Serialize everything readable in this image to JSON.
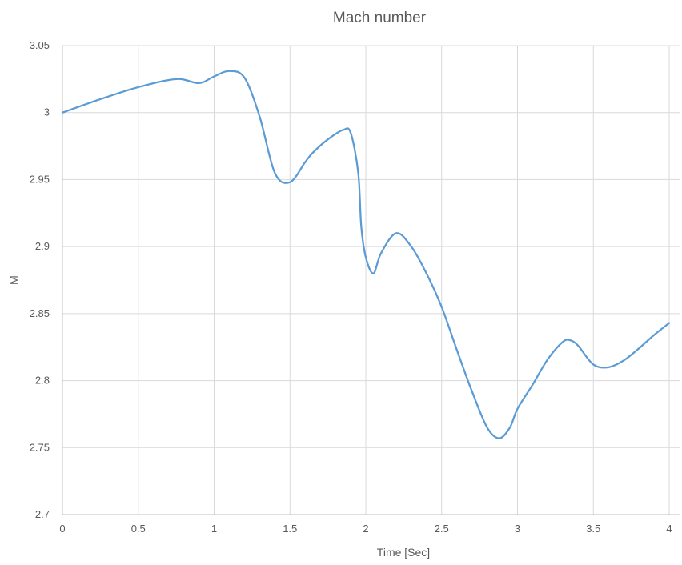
{
  "chart_data": {
    "type": "line",
    "title": "Mach number",
    "xlabel": "Time [Sec]",
    "ylabel": "M",
    "xlim": [
      0,
      4
    ],
    "ylim": [
      2.7,
      3.05
    ],
    "xticks": [
      "0",
      "0.5",
      "1",
      "1.5",
      "2",
      "2.5",
      "3",
      "3.5",
      "4"
    ],
    "yticks": [
      "2.7",
      "2.75",
      "2.8",
      "2.85",
      "2.9",
      "2.95",
      "3",
      "3.05"
    ],
    "grid": "vertical and horizontal",
    "legend": "none",
    "series": [
      {
        "color": "#5B9BD5",
        "x": [
          0,
          0.25,
          0.5,
          0.75,
          0.9,
          1.0,
          1.1,
          1.2,
          1.3,
          1.4,
          1.5,
          1.6,
          1.65,
          1.75,
          1.85,
          1.9,
          1.95,
          1.97,
          2.0,
          2.05,
          2.1,
          2.2,
          2.3,
          2.4,
          2.5,
          2.6,
          2.7,
          2.8,
          2.88,
          2.95,
          3.0,
          3.1,
          3.2,
          3.3,
          3.35,
          3.4,
          3.5,
          3.6,
          3.7,
          3.8,
          3.9,
          4.0
        ],
        "y": [
          3.0,
          3.01,
          3.019,
          3.025,
          3.022,
          3.027,
          3.031,
          3.026,
          2.997,
          2.955,
          2.948,
          2.963,
          2.97,
          2.98,
          2.987,
          2.985,
          2.955,
          2.915,
          2.892,
          2.88,
          2.895,
          2.91,
          2.9,
          2.88,
          2.855,
          2.823,
          2.792,
          2.765,
          2.757,
          2.765,
          2.779,
          2.797,
          2.816,
          2.829,
          2.83,
          2.826,
          2.812,
          2.81,
          2.815,
          2.824,
          2.834,
          2.843
        ]
      }
    ]
  }
}
